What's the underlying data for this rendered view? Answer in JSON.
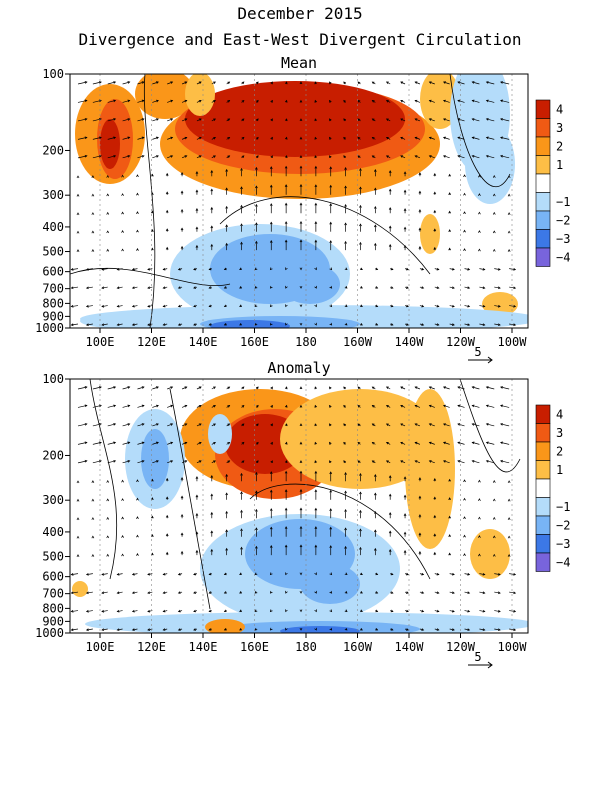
{
  "header": {
    "title": "December 2015",
    "subtitle": "Divergence and East-West Divergent Circulation"
  },
  "colors": {
    "levels": [
      {
        "label": "4",
        "color": "#c81e00"
      },
      {
        "label": "3",
        "color": "#f05a14"
      },
      {
        "label": "2",
        "color": "#fa9619"
      },
      {
        "label": "1",
        "color": "#fdbe46"
      },
      {
        "label": "",
        "color": "#ffffff"
      },
      {
        "label": "−1",
        "color": "#b4dcfa"
      },
      {
        "label": "−2",
        "color": "#78b4f5"
      },
      {
        "label": "−3",
        "color": "#3c78e6"
      },
      {
        "label": "−4",
        "color": "#7864dc"
      }
    ]
  },
  "chart_data": [
    {
      "type": "heatmap",
      "title": "Mean",
      "y_ticks": [
        "100",
        "200",
        "300",
        "400",
        "500",
        "600",
        "700",
        "800",
        "900",
        "1000"
      ],
      "x_ticks": [
        "100E",
        "120E",
        "140E",
        "160E",
        "180",
        "160W",
        "140W",
        "120W",
        "100W"
      ],
      "vector_ref": "5",
      "colorbar": [
        "4",
        "3",
        "2",
        "1",
        "−1",
        "−2",
        "−3",
        "−4"
      ],
      "features": [
        {
          "lon": 180,
          "p": 130,
          "value": 4
        },
        {
          "lon": 110,
          "p": 150,
          "value": 3
        },
        {
          "lon": 180,
          "p": 600,
          "value": -2
        },
        {
          "lon": 165,
          "p": 980,
          "value": -3
        }
      ]
    },
    {
      "type": "heatmap",
      "title": "Anomaly",
      "y_ticks": [
        "100",
        "200",
        "300",
        "400",
        "500",
        "600",
        "700",
        "800",
        "900",
        "1000"
      ],
      "x_ticks": [
        "100E",
        "120E",
        "140E",
        "160E",
        "180",
        "160W",
        "140W",
        "120W",
        "100W"
      ],
      "vector_ref": "5",
      "colorbar": [
        "4",
        "3",
        "2",
        "1",
        "−1",
        "−2",
        "−3",
        "−4"
      ],
      "features": [
        {
          "lon": 180,
          "p": 160,
          "value": 4
        },
        {
          "lon": 125,
          "p": 200,
          "value": -2
        },
        {
          "lon": 180,
          "p": 500,
          "value": -2
        },
        {
          "lon": 175,
          "p": 980,
          "value": -3
        }
      ]
    }
  ]
}
